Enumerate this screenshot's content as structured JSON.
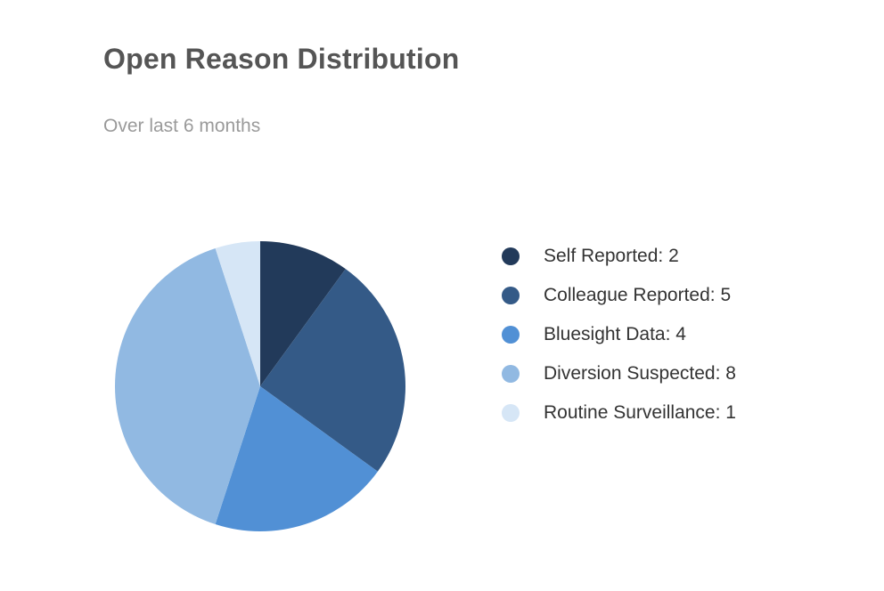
{
  "chart_data": {
    "type": "pie",
    "title": "Open Reason Distribution",
    "subtitle": "Over last 6 months",
    "slices": [
      {
        "name": "Self Reported",
        "value": 2,
        "color": "#223a5a",
        "legend": "Self Reported: 2"
      },
      {
        "name": "Colleague Reported",
        "value": 5,
        "color": "#345a87",
        "legend": "Colleague Reported: 5"
      },
      {
        "name": "Bluesight Data",
        "value": 4,
        "color": "#5190d5",
        "legend": "Bluesight Data: 4"
      },
      {
        "name": "Diversion Suspected",
        "value": 8,
        "color": "#91b9e2",
        "legend": "Diversion Suspected: 8"
      },
      {
        "name": "Routine Surveillance",
        "value": 1,
        "color": "#d6e6f6",
        "legend": "Routine Surveillance: 1"
      }
    ],
    "start_angle": "12 o'clock",
    "direction": "clockwise",
    "legend_position": "right"
  }
}
